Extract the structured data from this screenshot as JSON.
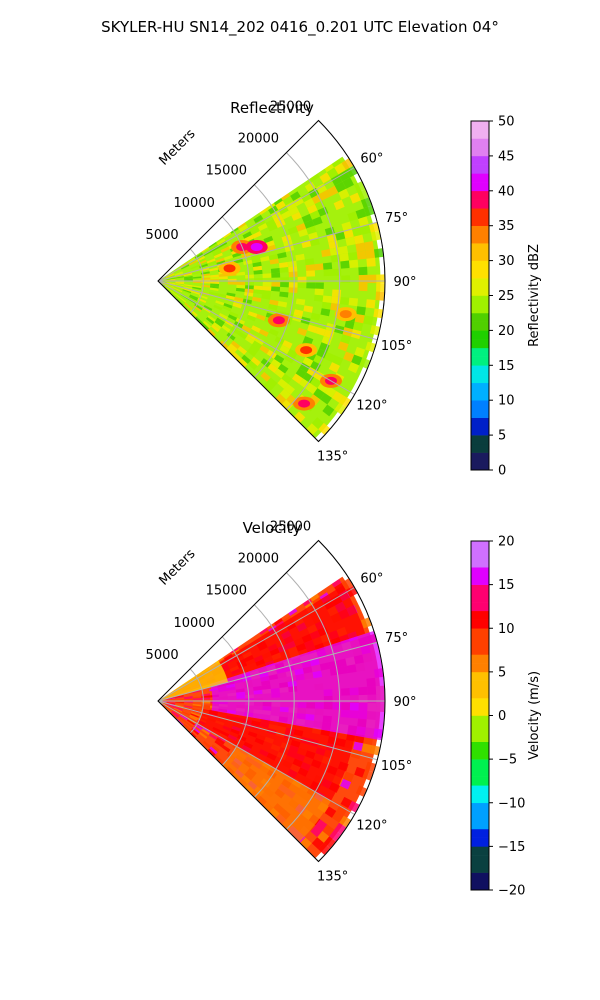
{
  "figure": {
    "title": "SKYLER-HU  SN14_202  0416_0.201 UTC Elevation 04°"
  },
  "chart_data": [
    {
      "type": "heatmap",
      "title": "Reflectivity",
      "polar": {
        "range_axis_label": "Meters",
        "range_max_m": 25000,
        "range_ticks": [
          "5000",
          "10000",
          "15000",
          "20000",
          "25000"
        ],
        "azimuth_range_deg": [
          45,
          135
        ],
        "azimuth_ticks": [
          "60°",
          "75°",
          "90°",
          "105°",
          "120°",
          "135°"
        ],
        "grid": true
      },
      "colorbar": {
        "label": "Reflectivity dBZ",
        "range": [
          0,
          50
        ],
        "ticks": [
          "0",
          "5",
          "10",
          "15",
          "20",
          "25",
          "30",
          "35",
          "40",
          "45",
          "50"
        ]
      },
      "field_description_levels": "mostly 20-30 dBZ with cores to ~40 dBZ",
      "cores": [
        {
          "azimuth_deg": 68,
          "range_m": 10000,
          "value_dbz": 38
        },
        {
          "azimuth_deg": 71,
          "range_m": 11500,
          "value_dbz": 42
        },
        {
          "azimuth_deg": 80,
          "range_m": 8000,
          "value_dbz": 36
        },
        {
          "azimuth_deg": 100,
          "range_m": 21000,
          "value_dbz": 34
        },
        {
          "azimuth_deg": 108,
          "range_m": 14000,
          "value_dbz": 38
        },
        {
          "azimuth_deg": 115,
          "range_m": 18000,
          "value_dbz": 36
        },
        {
          "azimuth_deg": 120,
          "range_m": 22000,
          "value_dbz": 38
        },
        {
          "azimuth_deg": 130,
          "range_m": 21000,
          "value_dbz": 38
        }
      ]
    },
    {
      "type": "heatmap",
      "title": "Velocity",
      "polar": {
        "range_axis_label": "Meters",
        "range_max_m": 25000,
        "range_ticks": [
          "5000",
          "10000",
          "15000",
          "20000",
          "25000"
        ],
        "azimuth_range_deg": [
          45,
          135
        ],
        "azimuth_ticks": [
          "60°",
          "75°",
          "90°",
          "105°",
          "120°",
          "135°"
        ],
        "grid": true
      },
      "colorbar": {
        "label": "Velocity (m/s)",
        "range": [
          -20,
          20
        ],
        "ticks": [
          "-20",
          "-15",
          "-10",
          "-5",
          "0",
          "5",
          "10",
          "15",
          "20"
        ]
      },
      "regions": [
        {
          "azimuth_deg": [
            58,
            72
          ],
          "range_m": [
            0,
            24000
          ],
          "value_ms": 11
        },
        {
          "azimuth_deg": [
            72,
            100
          ],
          "range_m": [
            6000,
            25000
          ],
          "value_ms": 15
        },
        {
          "azimuth_deg": [
            100,
            120
          ],
          "range_m": [
            5000,
            22000
          ],
          "value_ms": 12
        },
        {
          "azimuth_deg": [
            120,
            135
          ],
          "range_m": [
            10000,
            22000
          ],
          "value_ms": 6
        },
        {
          "azimuth_deg": [
            55,
            75
          ],
          "range_m": [
            0,
            8000
          ],
          "value_ms": 2
        }
      ]
    }
  ]
}
